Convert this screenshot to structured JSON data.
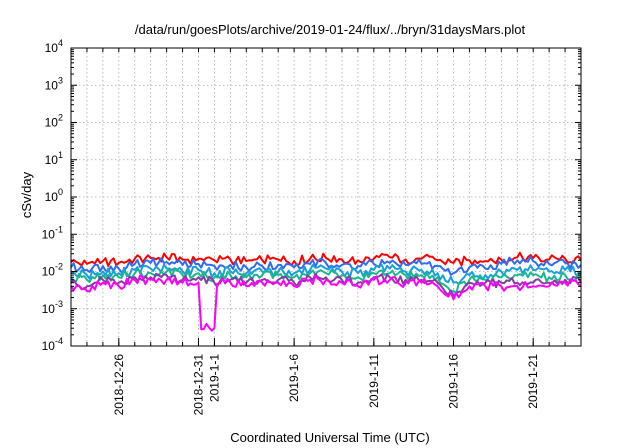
{
  "chart_data": {
    "type": "line",
    "title": "/data/run/goesPlots/archive/2019-01-24/flux/../bryn/31daysMars.plot",
    "xlabel": "Coordinated Universal Time (UTC)",
    "ylabel": "cSv/day",
    "yscale": "log",
    "ylim": [
      0.0001,
      10000
    ],
    "xlim": [
      "2018-12-23",
      "2019-01-24"
    ],
    "grid": true,
    "y_ticks": [
      {
        "base": "10",
        "exp": "-4",
        "value": 0.0001
      },
      {
        "base": "10",
        "exp": "-3",
        "value": 0.001
      },
      {
        "base": "10",
        "exp": "-2",
        "value": 0.01
      },
      {
        "base": "10",
        "exp": "-1",
        "value": 0.1
      },
      {
        "base": "10",
        "exp": "0",
        "value": 1
      },
      {
        "base": "10",
        "exp": "1",
        "value": 10
      },
      {
        "base": "10",
        "exp": "2",
        "value": 100
      },
      {
        "base": "10",
        "exp": "3",
        "value": 1000
      },
      {
        "base": "10",
        "exp": "4",
        "value": 10000
      }
    ],
    "x_ticks": [
      {
        "label": "2018-12-26",
        "date": "2018-12-26"
      },
      {
        "label": "2018-12-31",
        "date": "2018-12-31"
      },
      {
        "label": "2019-1-1",
        "date": "2019-01-01"
      },
      {
        "label": "2019-1-6",
        "date": "2019-01-06"
      },
      {
        "label": "2019-1-11",
        "date": "2019-01-11"
      },
      {
        "label": "2019-1-16",
        "date": "2019-01-16"
      },
      {
        "label": "2019-1-21",
        "date": "2019-01-21"
      }
    ],
    "x": [
      "2018-12-23",
      "2018-12-24",
      "2018-12-25",
      "2018-12-26",
      "2018-12-27",
      "2018-12-28",
      "2018-12-29",
      "2018-12-30",
      "2018-12-31",
      "2019-01-01",
      "2019-01-02",
      "2019-01-03",
      "2019-01-04",
      "2019-01-05",
      "2019-01-06",
      "2019-01-07",
      "2019-01-08",
      "2019-01-09",
      "2019-01-10",
      "2019-01-11",
      "2019-01-12",
      "2019-01-13",
      "2019-01-14",
      "2019-01-15",
      "2019-01-16",
      "2019-01-17",
      "2019-01-18",
      "2019-01-19",
      "2019-01-20",
      "2019-01-21",
      "2019-01-22",
      "2019-01-23",
      "2019-01-24"
    ],
    "series": [
      {
        "color": "#ff0000",
        "values": [
          0.018,
          0.016,
          0.019,
          0.017,
          0.022,
          0.023,
          0.024,
          0.021,
          0.022,
          0.02,
          0.021,
          0.019,
          0.02,
          0.021,
          0.019,
          0.022,
          0.023,
          0.021,
          0.02,
          0.022,
          0.024,
          0.021,
          0.022,
          0.02,
          0.017,
          0.02,
          0.019,
          0.021,
          0.024,
          0.023,
          0.021,
          0.022,
          0.02
        ]
      },
      {
        "color": "#2f6cf6",
        "values": [
          0.013,
          0.011,
          0.014,
          0.012,
          0.016,
          0.017,
          0.018,
          0.015,
          0.016,
          0.014,
          0.015,
          0.013,
          0.014,
          0.015,
          0.013,
          0.016,
          0.017,
          0.015,
          0.014,
          0.016,
          0.017,
          0.015,
          0.016,
          0.014,
          0.009,
          0.013,
          0.012,
          0.016,
          0.02,
          0.019,
          0.016,
          0.017,
          0.015
        ]
      },
      {
        "color": "#1aa0d8",
        "values": [
          0.009,
          0.008,
          0.01,
          0.009,
          0.011,
          0.012,
          0.012,
          0.01,
          0.011,
          0.009,
          0.01,
          0.009,
          0.01,
          0.01,
          0.009,
          0.011,
          0.012,
          0.01,
          0.009,
          0.011,
          0.012,
          0.01,
          0.011,
          0.009,
          0.005,
          0.008,
          0.008,
          0.01,
          0.011,
          0.011,
          0.01,
          0.011,
          0.01
        ]
      },
      {
        "color": "#1ab690",
        "values": [
          0.007,
          0.006,
          0.008,
          0.007,
          0.009,
          0.009,
          0.01,
          0.008,
          0.009,
          0.007,
          0.008,
          0.007,
          0.008,
          0.008,
          0.007,
          0.009,
          0.009,
          0.008,
          0.007,
          0.009,
          0.009,
          0.008,
          0.008,
          0.007,
          0.003,
          0.006,
          0.006,
          0.007,
          0.008,
          0.008,
          0.007,
          0.008,
          0.007
        ]
      },
      {
        "color": "#8040a0",
        "values": [
          0.005,
          0.004,
          0.006,
          0.005,
          0.007,
          0.007,
          0.008,
          0.006,
          0.007,
          0.005,
          0.006,
          0.005,
          0.006,
          0.006,
          0.005,
          0.007,
          0.007,
          0.006,
          0.005,
          0.007,
          0.007,
          0.006,
          0.006,
          0.005,
          0.0022,
          0.005,
          0.005,
          0.005,
          0.005,
          0.005,
          0.005,
          0.006,
          0.005
        ]
      },
      {
        "color": "#ff00ff",
        "values": [
          0.004,
          0.003,
          0.005,
          0.004,
          0.006,
          0.006,
          0.006,
          0.005,
          0.005,
          0.0003,
          0.005,
          0.004,
          0.005,
          0.005,
          0.004,
          0.006,
          0.006,
          0.005,
          0.004,
          0.006,
          0.006,
          0.005,
          0.005,
          0.004,
          0.0018,
          0.004,
          0.004,
          0.004,
          0.004,
          0.004,
          0.004,
          0.005,
          0.004
        ]
      }
    ]
  }
}
